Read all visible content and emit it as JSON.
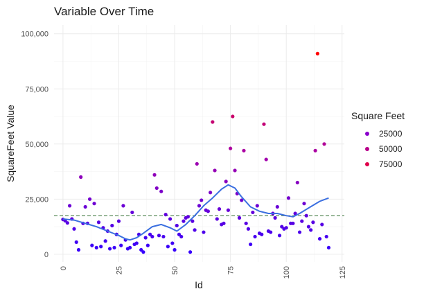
{
  "chart_data": {
    "type": "scatter",
    "title": "Variable Over Time",
    "xlabel": "Id",
    "ylabel": "SquareFeet Value",
    "xlim": [
      -4,
      126
    ],
    "ylim": [
      -3500,
      104000
    ],
    "x_ticks": [
      0,
      25,
      50,
      75,
      100,
      125
    ],
    "x_tick_labels": [
      "0",
      "25",
      "50",
      "75",
      "100",
      "125"
    ],
    "y_ticks": [
      0,
      25000,
      50000,
      75000,
      100000
    ],
    "y_tick_labels": [
      "0",
      "25,000",
      "50,000",
      "75,000",
      "100,000"
    ],
    "grid": true,
    "reference_line": {
      "y": 17500,
      "style": "dashed",
      "color": "#2e6b2e"
    },
    "color_scale": {
      "low": "#3300ff",
      "mid": "#a800a8",
      "high": "#ff0000",
      "min": 0,
      "max": 91000
    },
    "legend": {
      "title": "Square Feet",
      "position": "right",
      "entries": [
        {
          "label": "25000",
          "color": "#8a00cc"
        },
        {
          "label": "50000",
          "color": "#b8008a"
        },
        {
          "label": "75000",
          "color": "#e0004a"
        }
      ]
    },
    "points": [
      [
        0,
        15800
      ],
      [
        1,
        15200
      ],
      [
        2,
        14200
      ],
      [
        3,
        22000
      ],
      [
        4,
        16000
      ],
      [
        5,
        11500
      ],
      [
        6,
        5500
      ],
      [
        7,
        2000
      ],
      [
        8,
        35000
      ],
      [
        9,
        14000
      ],
      [
        10,
        21500
      ],
      [
        11,
        14000
      ],
      [
        12,
        25000
      ],
      [
        13,
        4000
      ],
      [
        14,
        23000
      ],
      [
        15,
        3000
      ],
      [
        16,
        14500
      ],
      [
        17,
        3500
      ],
      [
        18,
        12000
      ],
      [
        19,
        6000
      ],
      [
        20,
        10500
      ],
      [
        21,
        2500
      ],
      [
        22,
        13000
      ],
      [
        23,
        3000
      ],
      [
        24,
        9000
      ],
      [
        25,
        15000
      ],
      [
        26,
        4000
      ],
      [
        27,
        22000
      ],
      [
        28,
        6500
      ],
      [
        29,
        2500
      ],
      [
        30,
        3000
      ],
      [
        31,
        19000
      ],
      [
        32,
        4500
      ],
      [
        33,
        5000
      ],
      [
        34,
        9000
      ],
      [
        35,
        2000
      ],
      [
        36,
        1000
      ],
      [
        37,
        7500
      ],
      [
        38,
        4000
      ],
      [
        39,
        9000
      ],
      [
        40,
        8000
      ],
      [
        41,
        36000
      ],
      [
        42,
        30000
      ],
      [
        43,
        8500
      ],
      [
        44,
        28500
      ],
      [
        45,
        8000
      ],
      [
        46,
        18000
      ],
      [
        47,
        3500
      ],
      [
        48,
        16000
      ],
      [
        49,
        5000
      ],
      [
        50,
        2000
      ],
      [
        51,
        13000
      ],
      [
        52,
        9000
      ],
      [
        53,
        8000
      ],
      [
        54,
        15000
      ],
      [
        55,
        16500
      ],
      [
        56,
        17000
      ],
      [
        57,
        1000
      ],
      [
        58,
        15000
      ],
      [
        59,
        11000
      ],
      [
        60,
        41000
      ],
      [
        61,
        22000
      ],
      [
        62,
        24500
      ],
      [
        63,
        10000
      ],
      [
        64,
        20000
      ],
      [
        65,
        19500
      ],
      [
        66,
        28000
      ],
      [
        67,
        60000
      ],
      [
        68,
        38000
      ],
      [
        69,
        16000
      ],
      [
        70,
        20500
      ],
      [
        71,
        13500
      ],
      [
        72,
        14000
      ],
      [
        73,
        33000
      ],
      [
        74,
        20000
      ],
      [
        75,
        48000
      ],
      [
        76,
        62500
      ],
      [
        77,
        38000
      ],
      [
        78,
        27500
      ],
      [
        79,
        16500
      ],
      [
        80,
        24500
      ],
      [
        81,
        47000
      ],
      [
        82,
        14000
      ],
      [
        83,
        11500
      ],
      [
        84,
        4500
      ],
      [
        85,
        19000
      ],
      [
        86,
        8000
      ],
      [
        87,
        22000
      ],
      [
        88,
        9500
      ],
      [
        89,
        9000
      ],
      [
        90,
        59000
      ],
      [
        91,
        43000
      ],
      [
        92,
        10500
      ],
      [
        93,
        10000
      ],
      [
        94,
        18500
      ],
      [
        95,
        16500
      ],
      [
        96,
        21500
      ],
      [
        97,
        8500
      ],
      [
        98,
        12500
      ],
      [
        99,
        11500
      ],
      [
        100,
        12000
      ],
      [
        101,
        25500
      ],
      [
        102,
        14000
      ],
      [
        103,
        14000
      ],
      [
        104,
        18500
      ],
      [
        105,
        32500
      ],
      [
        106,
        10000
      ],
      [
        107,
        15000
      ],
      [
        108,
        23000
      ],
      [
        109,
        17500
      ],
      [
        110,
        12500
      ],
      [
        111,
        11000
      ],
      [
        112,
        14500
      ],
      [
        113,
        47000
      ],
      [
        114,
        91000
      ],
      [
        115,
        7000
      ],
      [
        116,
        13500
      ],
      [
        117,
        50000
      ],
      [
        118,
        8000
      ],
      [
        119,
        3000
      ]
    ],
    "trend_line": {
      "color": "#3b6fe0",
      "points": [
        [
          0,
          16000
        ],
        [
          5,
          15500
        ],
        [
          10,
          14000
        ],
        [
          15,
          12500
        ],
        [
          20,
          10500
        ],
        [
          25,
          8500
        ],
        [
          28,
          7000
        ],
        [
          30,
          6500
        ],
        [
          33,
          7500
        ],
        [
          36,
          9500
        ],
        [
          40,
          12500
        ],
        [
          44,
          13500
        ],
        [
          48,
          12000
        ],
        [
          51,
          10500
        ],
        [
          55,
          13500
        ],
        [
          59,
          17500
        ],
        [
          63,
          22000
        ],
        [
          67,
          25500
        ],
        [
          71,
          29500
        ],
        [
          74,
          31500
        ],
        [
          77,
          30000
        ],
        [
          80,
          26000
        ],
        [
          84,
          21500
        ],
        [
          88,
          19500
        ],
        [
          92,
          18500
        ],
        [
          96,
          18500
        ],
        [
          100,
          17500
        ],
        [
          103,
          17000
        ],
        [
          106,
          18500
        ],
        [
          110,
          21000
        ],
        [
          115,
          24000
        ],
        [
          119,
          25500
        ]
      ]
    }
  }
}
